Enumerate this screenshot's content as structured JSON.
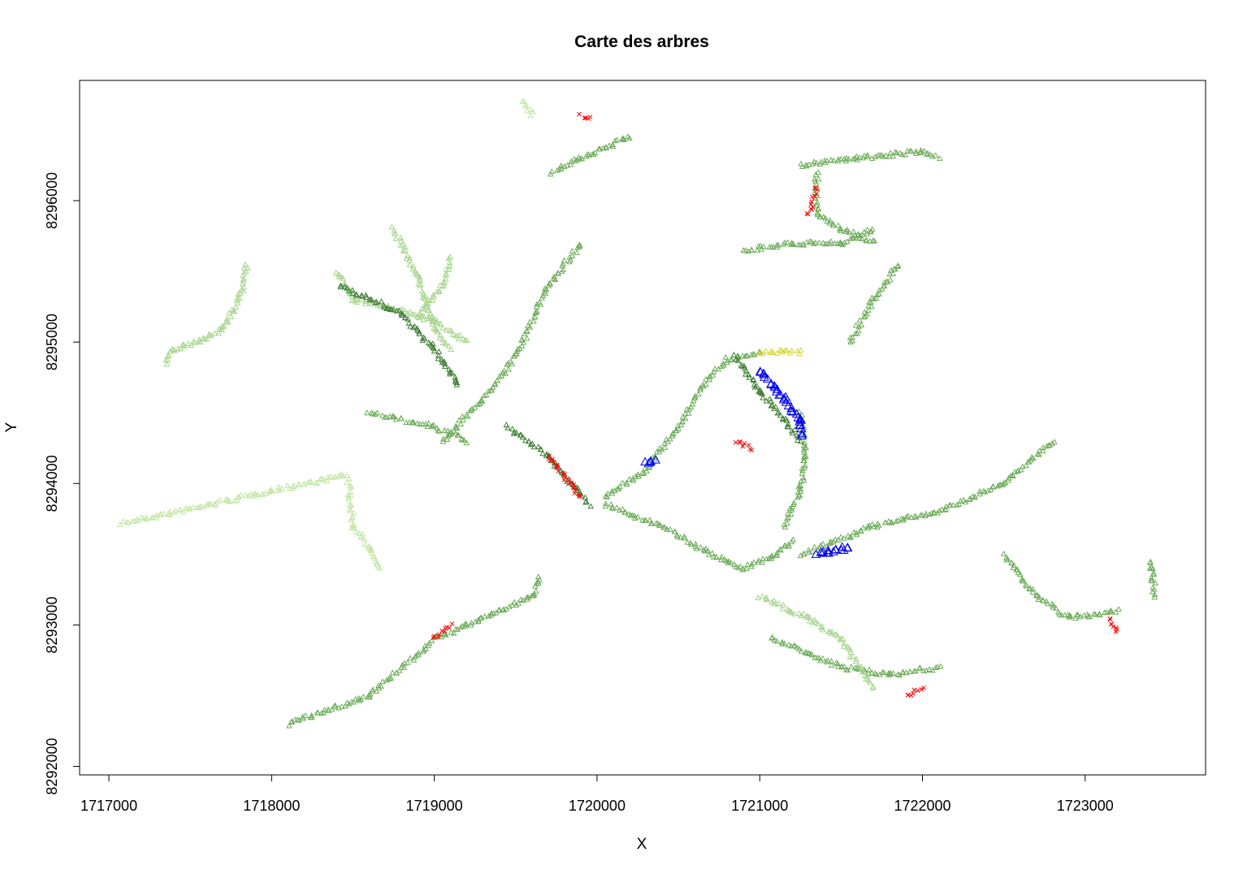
{
  "chart_data": {
    "type": "scatter",
    "title": "Carte des arbres",
    "xlabel": "X",
    "ylabel": "Y",
    "xlim": [
      1716820,
      1723740
    ],
    "ylim": [
      8291940,
      8296850
    ],
    "x_ticks": [
      1717000,
      1718000,
      1719000,
      1720000,
      1721000,
      1722000,
      1723000
    ],
    "y_ticks": [
      8292000,
      8293000,
      8294000,
      8295000,
      8296000
    ],
    "x_tick_labels": [
      "1717000",
      "1718000",
      "1719000",
      "1720000",
      "1721000",
      "1722000",
      "1723000"
    ],
    "y_tick_labels": [
      "8292000",
      "8293000",
      "8294000",
      "8295000",
      "8296000"
    ],
    "grid": false,
    "legend": "none",
    "marker_colors": {
      "light_green": "#a8d68f",
      "mid_green": "#6fae5c",
      "dark_green": "#3f7f35",
      "pale_green": "#c4e6a6",
      "red": "#ff0000",
      "blue": "#0000ee",
      "yellow": "#d8d840"
    },
    "point_groups": [
      {
        "marker": "triangle",
        "color": "pale_green",
        "line": [
          [
            1717080,
            8293720
          ],
          [
            1717500,
            8293820
          ],
          [
            1718000,
            8293950
          ],
          [
            1718450,
            8294060
          ]
        ]
      },
      {
        "marker": "triangle",
        "color": "pale_green",
        "line": [
          [
            1718470,
            8294050
          ],
          [
            1718500,
            8293700
          ],
          [
            1718600,
            8293550
          ],
          [
            1718660,
            8293400
          ]
        ]
      },
      {
        "marker": "triangle",
        "color": "light_green",
        "line": [
          [
            1718400,
            8295500
          ],
          [
            1718500,
            8295300
          ],
          [
            1718700,
            8295250
          ],
          [
            1719000,
            8295150
          ],
          [
            1719200,
            8295000
          ]
        ]
      },
      {
        "marker": "triangle",
        "color": "light_green",
        "line": [
          [
            1718750,
            8295800
          ],
          [
            1718900,
            8295450
          ],
          [
            1719000,
            8295100
          ],
          [
            1719100,
            8294950
          ]
        ]
      },
      {
        "marker": "triangle",
        "color": "light_green",
        "line": [
          [
            1718900,
            8295200
          ],
          [
            1719050,
            8295400
          ],
          [
            1719100,
            8295600
          ]
        ]
      },
      {
        "marker": "triangle",
        "color": "light_green",
        "line": [
          [
            1717850,
            8295550
          ],
          [
            1717800,
            8295300
          ],
          [
            1717700,
            8295100
          ],
          [
            1717550,
            8295000
          ],
          [
            1717400,
            8294950
          ],
          [
            1717350,
            8294850
          ]
        ]
      },
      {
        "marker": "triangle",
        "color": "dark_green",
        "line": [
          [
            1718420,
            8295400
          ],
          [
            1718800,
            8295200
          ],
          [
            1719000,
            8294950
          ],
          [
            1719150,
            8294700
          ]
        ]
      },
      {
        "marker": "triangle",
        "color": "mid_green",
        "line": [
          [
            1718600,
            8294500
          ],
          [
            1719000,
            8294400
          ],
          [
            1719200,
            8294300
          ]
        ]
      },
      {
        "marker": "triangle",
        "color": "mid_green",
        "line": [
          [
            1718100,
            8292300
          ],
          [
            1718600,
            8292500
          ],
          [
            1719000,
            8292900
          ],
          [
            1719600,
            8293200
          ],
          [
            1719650,
            8293350
          ]
        ]
      },
      {
        "marker": "triangle",
        "color": "mid_green",
        "line": [
          [
            1719050,
            8294300
          ],
          [
            1719300,
            8294600
          ],
          [
            1719500,
            8294900
          ],
          [
            1719700,
            8295400
          ],
          [
            1719900,
            8295700
          ]
        ]
      },
      {
        "marker": "triangle",
        "color": "dark_green",
        "line": [
          [
            1719450,
            8294400
          ],
          [
            1719700,
            8294200
          ],
          [
            1719950,
            8293850
          ]
        ]
      },
      {
        "marker": "triangle",
        "color": "mid_green",
        "line": [
          [
            1720050,
            8293900
          ],
          [
            1720300,
            8294100
          ],
          [
            1720500,
            8294400
          ],
          [
            1720650,
            8294700
          ],
          [
            1720800,
            8294880
          ],
          [
            1721000,
            8294920
          ]
        ]
      },
      {
        "marker": "triangle",
        "color": "mid_green",
        "line": [
          [
            1720050,
            8293850
          ],
          [
            1720400,
            8293700
          ],
          [
            1720700,
            8293500
          ],
          [
            1720900,
            8293400
          ],
          [
            1721100,
            8293500
          ],
          [
            1721200,
            8293600
          ]
        ]
      },
      {
        "marker": "triangle",
        "color": "mid_green",
        "line": [
          [
            1721150,
            8293700
          ],
          [
            1721250,
            8293950
          ],
          [
            1721280,
            8294200
          ],
          [
            1721250,
            8294500
          ]
        ]
      },
      {
        "marker": "triangle",
        "color": "dark_green",
        "line": [
          [
            1720850,
            8294900
          ],
          [
            1721000,
            8294650
          ],
          [
            1721150,
            8294450
          ],
          [
            1721250,
            8294300
          ]
        ]
      },
      {
        "marker": "triangle",
        "color": "mid_green",
        "line": [
          [
            1721250,
            8293500
          ],
          [
            1721700,
            8293700
          ],
          [
            1722100,
            8293800
          ],
          [
            1722500,
            8294000
          ],
          [
            1722800,
            8294300
          ]
        ]
      },
      {
        "marker": "triangle",
        "color": "mid_green",
        "line": [
          [
            1720900,
            8295650
          ],
          [
            1721200,
            8295700
          ],
          [
            1721500,
            8295700
          ],
          [
            1721700,
            8295800
          ]
        ]
      },
      {
        "marker": "triangle",
        "color": "mid_green",
        "line": [
          [
            1721250,
            8296250
          ],
          [
            1721600,
            8296300
          ],
          [
            1722000,
            8296350
          ],
          [
            1722100,
            8296300
          ]
        ]
      },
      {
        "marker": "triangle",
        "color": "mid_green",
        "line": [
          [
            1721350,
            8296200
          ],
          [
            1721350,
            8295900
          ],
          [
            1721500,
            8295800
          ],
          [
            1721700,
            8295700
          ]
        ]
      },
      {
        "marker": "triangle",
        "color": "mid_green",
        "line": [
          [
            1721550,
            8295000
          ],
          [
            1721700,
            8295300
          ],
          [
            1721850,
            8295550
          ]
        ]
      },
      {
        "marker": "triangle",
        "color": "mid_green",
        "line": [
          [
            1721070,
            8292900
          ],
          [
            1721300,
            8292800
          ],
          [
            1721500,
            8292700
          ],
          [
            1721800,
            8292650
          ],
          [
            1722100,
            8292700
          ]
        ]
      },
      {
        "marker": "triangle",
        "color": "light_green",
        "line": [
          [
            1721000,
            8293200
          ],
          [
            1721300,
            8293050
          ],
          [
            1721500,
            8292900
          ],
          [
            1721700,
            8292550
          ]
        ]
      },
      {
        "marker": "triangle",
        "color": "mid_green",
        "line": [
          [
            1722500,
            8293500
          ],
          [
            1722700,
            8293200
          ],
          [
            1722900,
            8293050
          ],
          [
            1723200,
            8293100
          ]
        ]
      },
      {
        "marker": "triangle",
        "color": "mid_green",
        "line": [
          [
            1723400,
            8293450
          ],
          [
            1723430,
            8293200
          ]
        ]
      },
      {
        "marker": "triangle",
        "color": "mid_green",
        "line": [
          [
            1719720,
            8296200
          ],
          [
            1719900,
            8296300
          ],
          [
            1720200,
            8296450
          ]
        ]
      },
      {
        "marker": "triangle",
        "color": "pale_green",
        "line": [
          [
            1719550,
            8296700
          ],
          [
            1719600,
            8296600
          ]
        ]
      },
      {
        "marker": "cross",
        "color": "red",
        "line": [
          [
            1719900,
            8296600
          ],
          [
            1719950,
            8296580
          ]
        ]
      },
      {
        "marker": "cross",
        "color": "red",
        "line": [
          [
            1721300,
            8295900
          ],
          [
            1721350,
            8296100
          ]
        ]
      },
      {
        "marker": "cross",
        "color": "red",
        "line": [
          [
            1720850,
            8294300
          ],
          [
            1720950,
            8294250
          ]
        ]
      },
      {
        "marker": "cross",
        "color": "red",
        "line": [
          [
            1723150,
            8293050
          ],
          [
            1723200,
            8292950
          ]
        ]
      },
      {
        "marker": "cross",
        "color": "red",
        "line": [
          [
            1719000,
            8292900
          ],
          [
            1719100,
            8293000
          ]
        ]
      },
      {
        "marker": "cross",
        "color": "red",
        "line": [
          [
            1721900,
            8292500
          ],
          [
            1722000,
            8292550
          ]
        ]
      },
      {
        "marker": "cross",
        "color": "red",
        "line": [
          [
            1719700,
            8294200
          ],
          [
            1719900,
            8293900
          ]
        ]
      },
      {
        "marker": "triangle",
        "color": "blue",
        "line": [
          [
            1721000,
            8294800
          ],
          [
            1721150,
            8294600
          ],
          [
            1721250,
            8294450
          ],
          [
            1721250,
            8294350
          ]
        ]
      },
      {
        "marker": "triangle",
        "color": "blue",
        "line": [
          [
            1721350,
            8293500
          ],
          [
            1721550,
            8293550
          ]
        ]
      },
      {
        "marker": "triangle",
        "color": "blue",
        "line": [
          [
            1720300,
            8294150
          ],
          [
            1720350,
            8294170
          ]
        ]
      },
      {
        "marker": "triangle",
        "color": "yellow",
        "line": [
          [
            1721000,
            8294930
          ],
          [
            1721250,
            8294930
          ]
        ]
      }
    ]
  }
}
